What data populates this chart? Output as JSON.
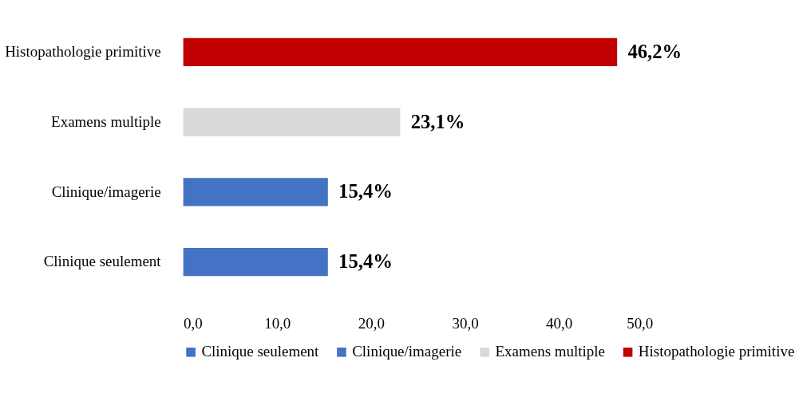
{
  "chart_data": {
    "type": "bar",
    "orientation": "horizontal",
    "categories": [
      "Histopathologie primitive",
      "Examens multiple",
      "Clinique/imagerie",
      "Clinique seulement"
    ],
    "series": [
      {
        "name": "Clinique seulement",
        "color": "#4472c4",
        "values": [
          null,
          null,
          null,
          15.4
        ],
        "value_labels": [
          null,
          null,
          null,
          "15,4%"
        ]
      },
      {
        "name": "Clinique/imagerie",
        "color": "#4472c4",
        "values": [
          null,
          null,
          15.4,
          null
        ],
        "value_labels": [
          null,
          null,
          "15,4%",
          null
        ]
      },
      {
        "name": "Examens multiple",
        "color": "#d9d9d9",
        "values": [
          null,
          23.1,
          null,
          null
        ],
        "value_labels": [
          null,
          "23,1%",
          null,
          null
        ]
      },
      {
        "name": "Histopathologie primitive",
        "color": "#c00000",
        "values": [
          46.2,
          null,
          null,
          null
        ],
        "value_labels": [
          "46,2%",
          null,
          null,
          null
        ]
      }
    ],
    "xlim": [
      0,
      50
    ],
    "xticks": [
      {
        "value": 0,
        "label": "0,0"
      },
      {
        "value": 10,
        "label": "10,0"
      },
      {
        "value": 20,
        "label": "20,0"
      },
      {
        "value": 30,
        "label": "30,0"
      },
      {
        "value": 40,
        "label": "40,0"
      },
      {
        "value": 50,
        "label": "50,0"
      }
    ],
    "grid": false,
    "legend": "bottom"
  }
}
